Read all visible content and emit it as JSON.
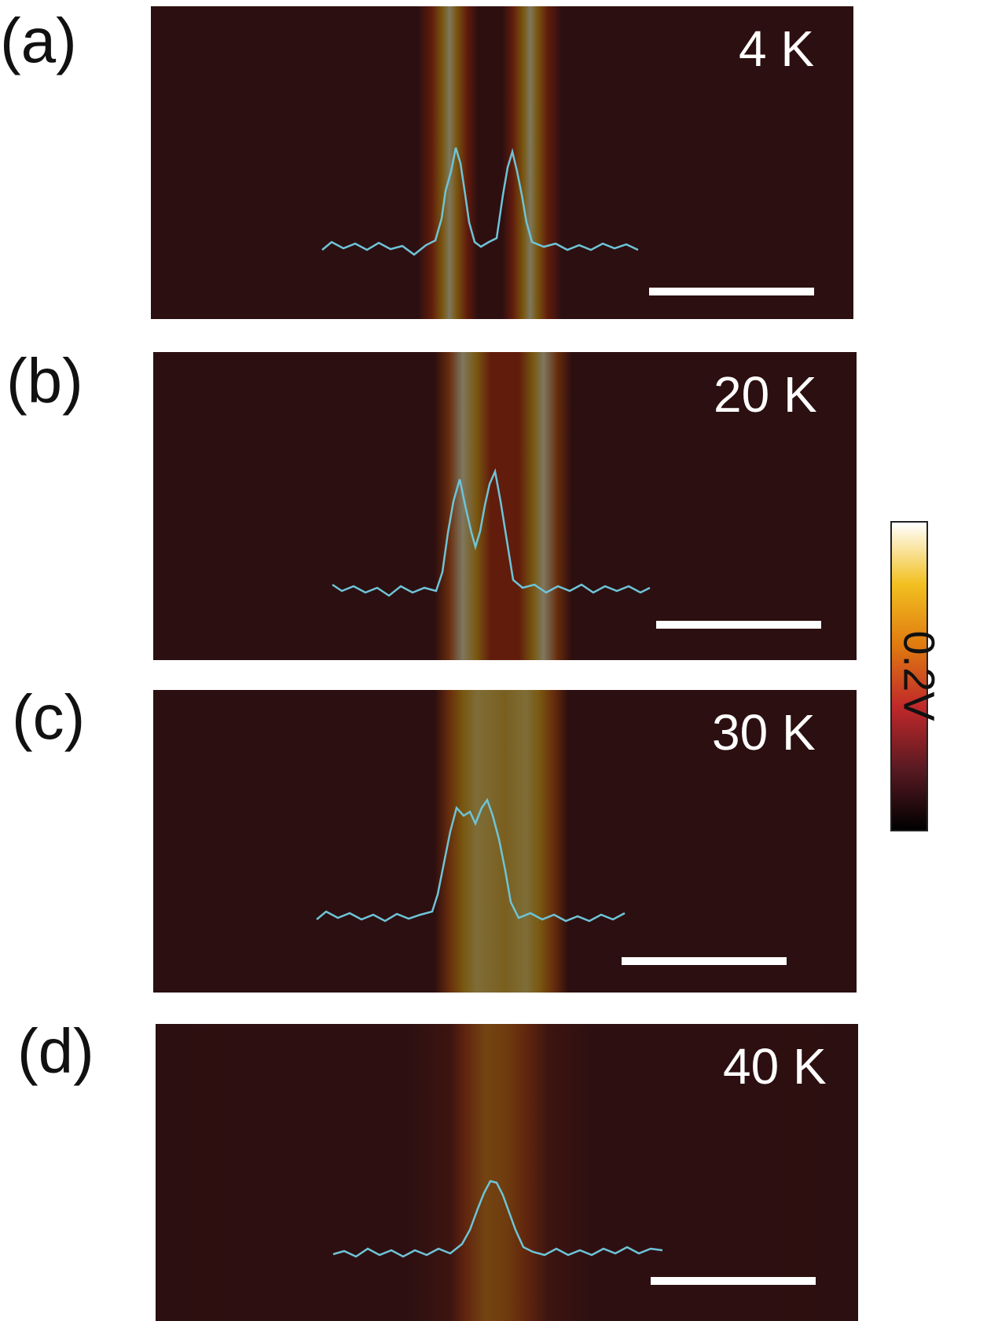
{
  "figure": {
    "panels": [
      {
        "label": "(a)",
        "temperature": "4 K",
        "peaks": 2
      },
      {
        "label": "(b)",
        "temperature": "20 K",
        "peaks": 2
      },
      {
        "label": "(c)",
        "temperature": "30 K",
        "peaks": 2
      },
      {
        "label": "(d)",
        "temperature": "40 K",
        "peaks": 1
      }
    ],
    "colorbar": {
      "label": "0.2V",
      "colors": [
        "#ffffff",
        "#f2c020",
        "#e07a10",
        "#c0282a",
        "#5a1a22",
        "#000000"
      ]
    },
    "colors": {
      "background_map": "#5a1f22",
      "profile_line": "#6ec4d8",
      "scale_bar": "#ffffff"
    }
  }
}
